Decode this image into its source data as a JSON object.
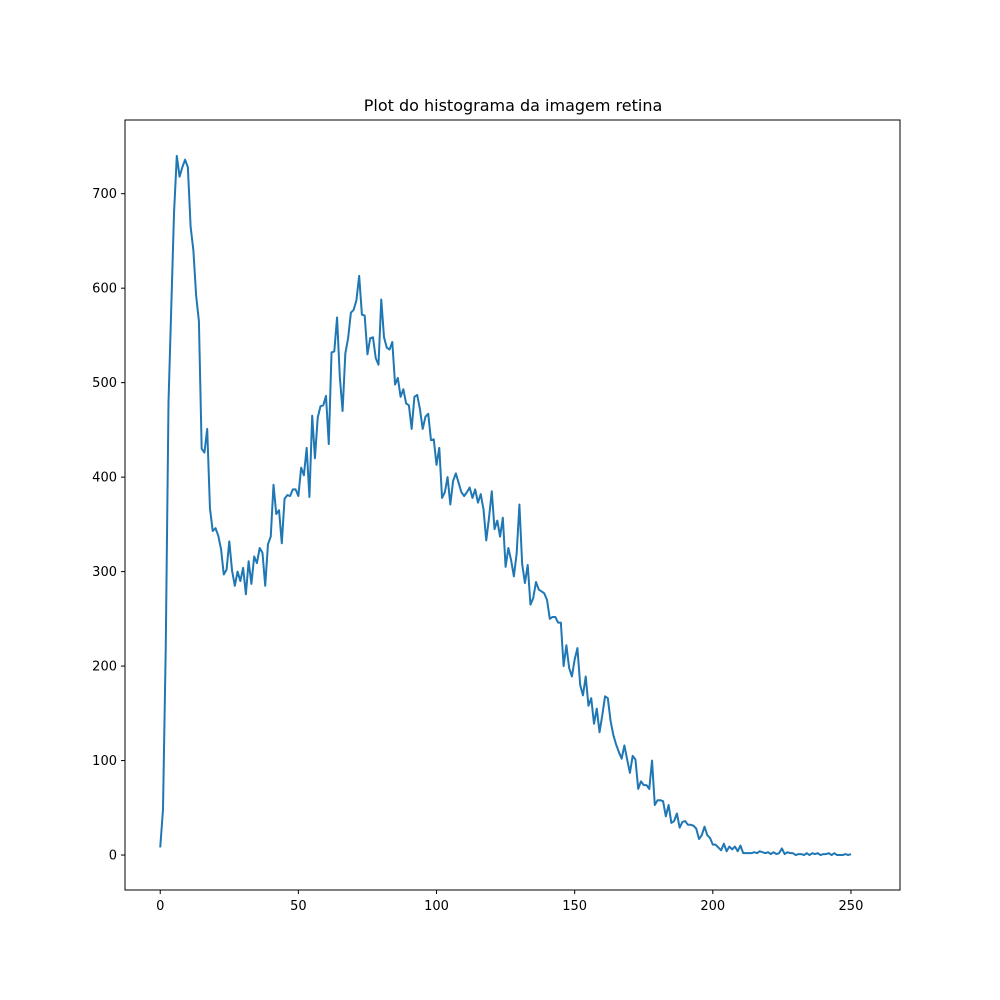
{
  "chart_data": {
    "type": "line",
    "title": "Plot do histograma da imagem retina",
    "xlabel": "",
    "ylabel": "",
    "xlim": [
      -12.75,
      267.75
    ],
    "ylim": [
      -37,
      778
    ],
    "grid": false,
    "x_ticks": [
      0,
      50,
      100,
      150,
      200,
      250
    ],
    "y_ticks": [
      0,
      100,
      200,
      300,
      400,
      500,
      600,
      700
    ],
    "line_color": "#1f77b4",
    "series": [
      {
        "values": [
          8,
          48,
          220,
          480,
          580,
          680,
          740,
          718,
          728,
          736,
          728,
          665,
          640,
          592,
          565,
          430,
          426,
          451,
          367,
          343,
          346,
          338,
          324,
          297,
          302,
          332,
          301,
          285,
          300,
          290,
          304,
          276,
          311,
          287,
          316,
          309,
          325,
          320,
          285,
          329,
          337,
          392,
          361,
          365,
          330,
          377,
          381,
          380,
          387,
          387,
          380,
          410,
          402,
          431,
          379,
          465,
          420,
          463,
          475,
          476,
          486,
          435,
          532,
          533,
          569,
          506,
          470,
          531,
          547,
          574,
          577,
          587,
          613,
          572,
          571,
          530,
          547,
          548,
          526,
          519,
          588,
          548,
          537,
          535,
          543,
          498,
          505,
          485,
          493,
          478,
          476,
          451,
          485,
          487,
          472,
          451,
          464,
          467,
          439,
          440,
          413,
          431,
          378,
          384,
          400,
          371,
          396,
          404,
          394,
          384,
          380,
          384,
          389,
          378,
          387,
          373,
          382,
          366,
          333,
          357,
          385,
          345,
          354,
          337,
          357,
          305,
          325,
          312,
          295,
          319,
          371,
          308,
          288,
          307,
          265,
          272,
          289,
          281,
          279,
          277,
          270,
          250,
          252,
          252,
          246,
          246,
          200,
          222,
          198,
          189,
          207,
          219,
          180,
          169,
          189,
          158,
          166,
          139,
          155,
          130,
          148,
          168,
          166,
          142,
          127,
          117,
          109,
          102,
          116,
          101,
          87,
          105,
          101,
          70,
          78,
          74,
          74,
          70,
          100,
          53,
          58,
          58,
          57,
          41,
          53,
          34,
          36,
          44,
          29,
          35,
          36,
          32,
          32,
          31,
          28,
          17,
          21,
          30,
          21,
          18,
          11,
          11,
          8,
          5,
          12,
          4,
          9,
          6,
          9,
          4,
          10,
          2,
          2,
          2,
          2,
          3,
          2,
          4,
          3,
          2,
          3,
          1,
          3,
          1,
          2,
          7,
          1,
          3,
          2,
          2,
          0,
          1,
          1,
          0,
          2,
          0,
          2,
          1,
          2,
          0,
          1,
          1,
          2,
          0,
          2,
          0,
          0,
          0,
          1,
          0,
          1
        ]
      }
    ]
  }
}
